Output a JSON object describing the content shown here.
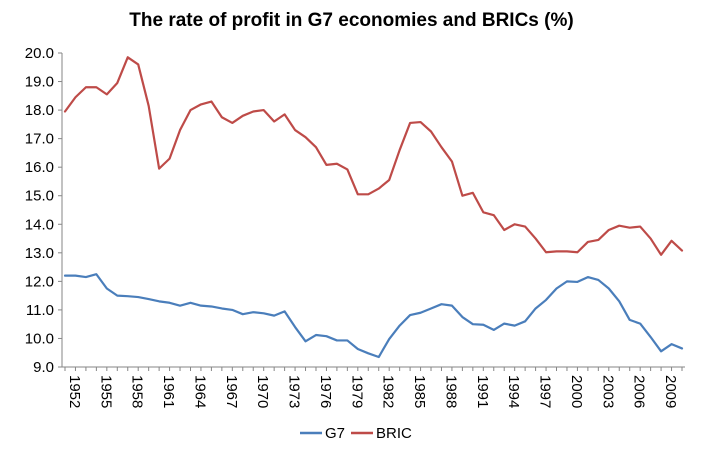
{
  "chart_data": {
    "type": "line",
    "title": "The rate of profit in G7 economies and BRICs (%)",
    "xlabel": "",
    "ylabel": "",
    "ylim": [
      9.0,
      20.0
    ],
    "yticks": [
      "9.0",
      "10.0",
      "11.0",
      "12.0",
      "13.0",
      "14.0",
      "15.0",
      "16.0",
      "17.0",
      "18.0",
      "19.0",
      "20.0"
    ],
    "x": [
      1952,
      1953,
      1954,
      1955,
      1956,
      1957,
      1958,
      1959,
      1960,
      1961,
      1962,
      1963,
      1964,
      1965,
      1966,
      1967,
      1968,
      1969,
      1970,
      1971,
      1972,
      1973,
      1974,
      1975,
      1976,
      1977,
      1978,
      1979,
      1980,
      1981,
      1982,
      1983,
      1984,
      1985,
      1986,
      1987,
      1988,
      1989,
      1990,
      1991,
      1992,
      1993,
      1994,
      1995,
      1996,
      1997,
      1998,
      1999,
      2000,
      2001,
      2002,
      2003,
      2004,
      2005,
      2006,
      2007,
      2008,
      2009,
      2010,
      2011
    ],
    "xticks": [
      "1952",
      "1955",
      "1958",
      "1961",
      "1964",
      "1967",
      "1970",
      "1973",
      "1976",
      "1979",
      "1982",
      "1985",
      "1988",
      "1991",
      "1994",
      "1997",
      "2000",
      "2003",
      "2006",
      "2009"
    ],
    "grid": false,
    "legend_position": "bottom",
    "series": [
      {
        "name": "G7",
        "color": "#4a7ebb",
        "values": [
          12.2,
          12.2,
          12.15,
          12.25,
          11.75,
          11.5,
          11.48,
          11.45,
          11.38,
          11.3,
          11.25,
          11.15,
          11.25,
          11.15,
          11.12,
          11.05,
          11.0,
          10.85,
          10.92,
          10.88,
          10.8,
          10.95,
          10.4,
          9.9,
          10.12,
          10.08,
          9.93,
          9.93,
          9.63,
          9.48,
          9.35,
          9.98,
          10.45,
          10.82,
          10.9,
          11.05,
          11.2,
          11.15,
          10.75,
          10.5,
          10.48,
          10.3,
          10.52,
          10.45,
          10.6,
          11.05,
          11.35,
          11.75,
          12.0,
          11.98,
          12.15,
          12.05,
          11.75,
          11.3,
          10.65,
          10.52,
          10.05,
          9.55,
          9.8,
          9.65
        ]
      },
      {
        "name": "BRIC",
        "color": "#be4b48",
        "values": [
          17.95,
          18.45,
          18.8,
          18.8,
          18.55,
          18.95,
          19.85,
          19.6,
          18.15,
          15.95,
          16.3,
          17.3,
          18.0,
          18.2,
          18.3,
          17.75,
          17.55,
          17.8,
          17.95,
          18.0,
          17.6,
          17.85,
          17.3,
          17.05,
          16.7,
          16.08,
          16.12,
          15.92,
          15.05,
          15.05,
          15.25,
          15.55,
          16.6,
          17.55,
          17.58,
          17.25,
          16.7,
          16.2,
          15.0,
          15.1,
          14.42,
          14.32,
          13.8,
          14.0,
          13.92,
          13.5,
          13.02,
          13.05,
          13.05,
          13.02,
          13.38,
          13.45,
          13.8,
          13.95,
          13.88,
          13.92,
          13.5,
          12.93,
          13.42,
          13.08
        ]
      }
    ]
  }
}
